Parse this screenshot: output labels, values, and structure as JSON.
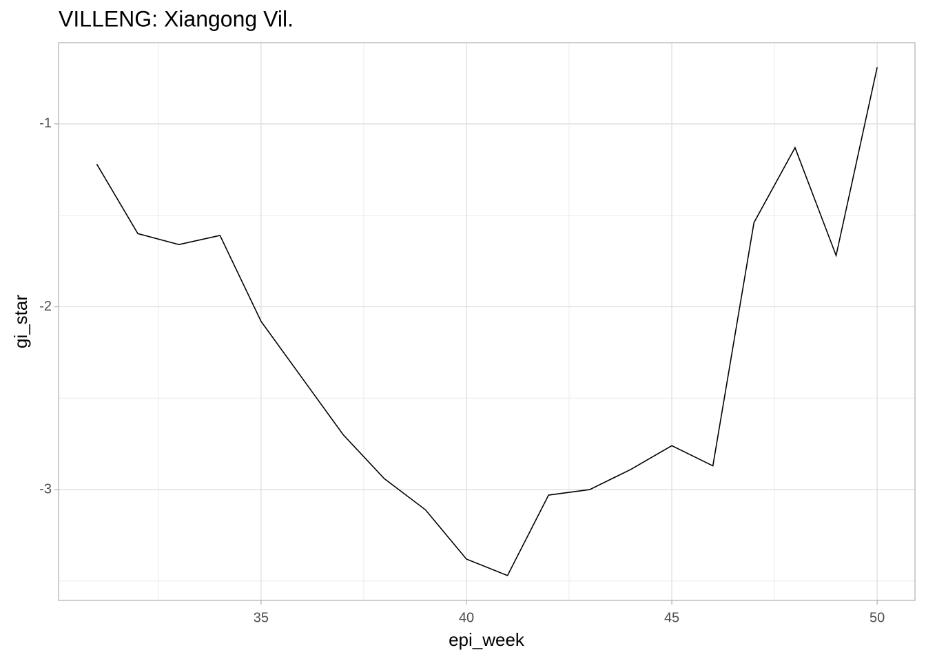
{
  "chart_data": {
    "type": "line",
    "title": "VILLENG: Xiangong Vil.",
    "x_label": "epi_week",
    "y_label": "gi_star",
    "x": [
      31,
      32,
      33,
      34,
      35,
      36,
      37,
      38,
      39,
      40,
      41,
      42,
      43,
      44,
      45,
      46,
      47,
      48,
      49,
      50
    ],
    "series": [
      {
        "name": "gi_star",
        "color": "#000000",
        "values": [
          -1.22,
          -1.6,
          -1.66,
          -1.61,
          -2.08,
          -2.39,
          -2.7,
          -2.94,
          -3.11,
          -3.38,
          -3.47,
          -3.03,
          -3.0,
          -2.89,
          -2.76,
          -2.87,
          -1.54,
          -1.13,
          -1.72,
          -0.69
        ]
      }
    ],
    "xlim": [
      30.07,
      50.92
    ],
    "ylim": [
      -3.606,
      -0.556
    ],
    "xticks": [
      35,
      40,
      45,
      50
    ],
    "yticks": [
      -1,
      -2,
      -3
    ],
    "minor_xticks": [
      32.5,
      37.5,
      42.5,
      47.5
    ],
    "minor_yticks": [
      -1.5,
      -2.5,
      -3.5
    ],
    "grid": true
  }
}
